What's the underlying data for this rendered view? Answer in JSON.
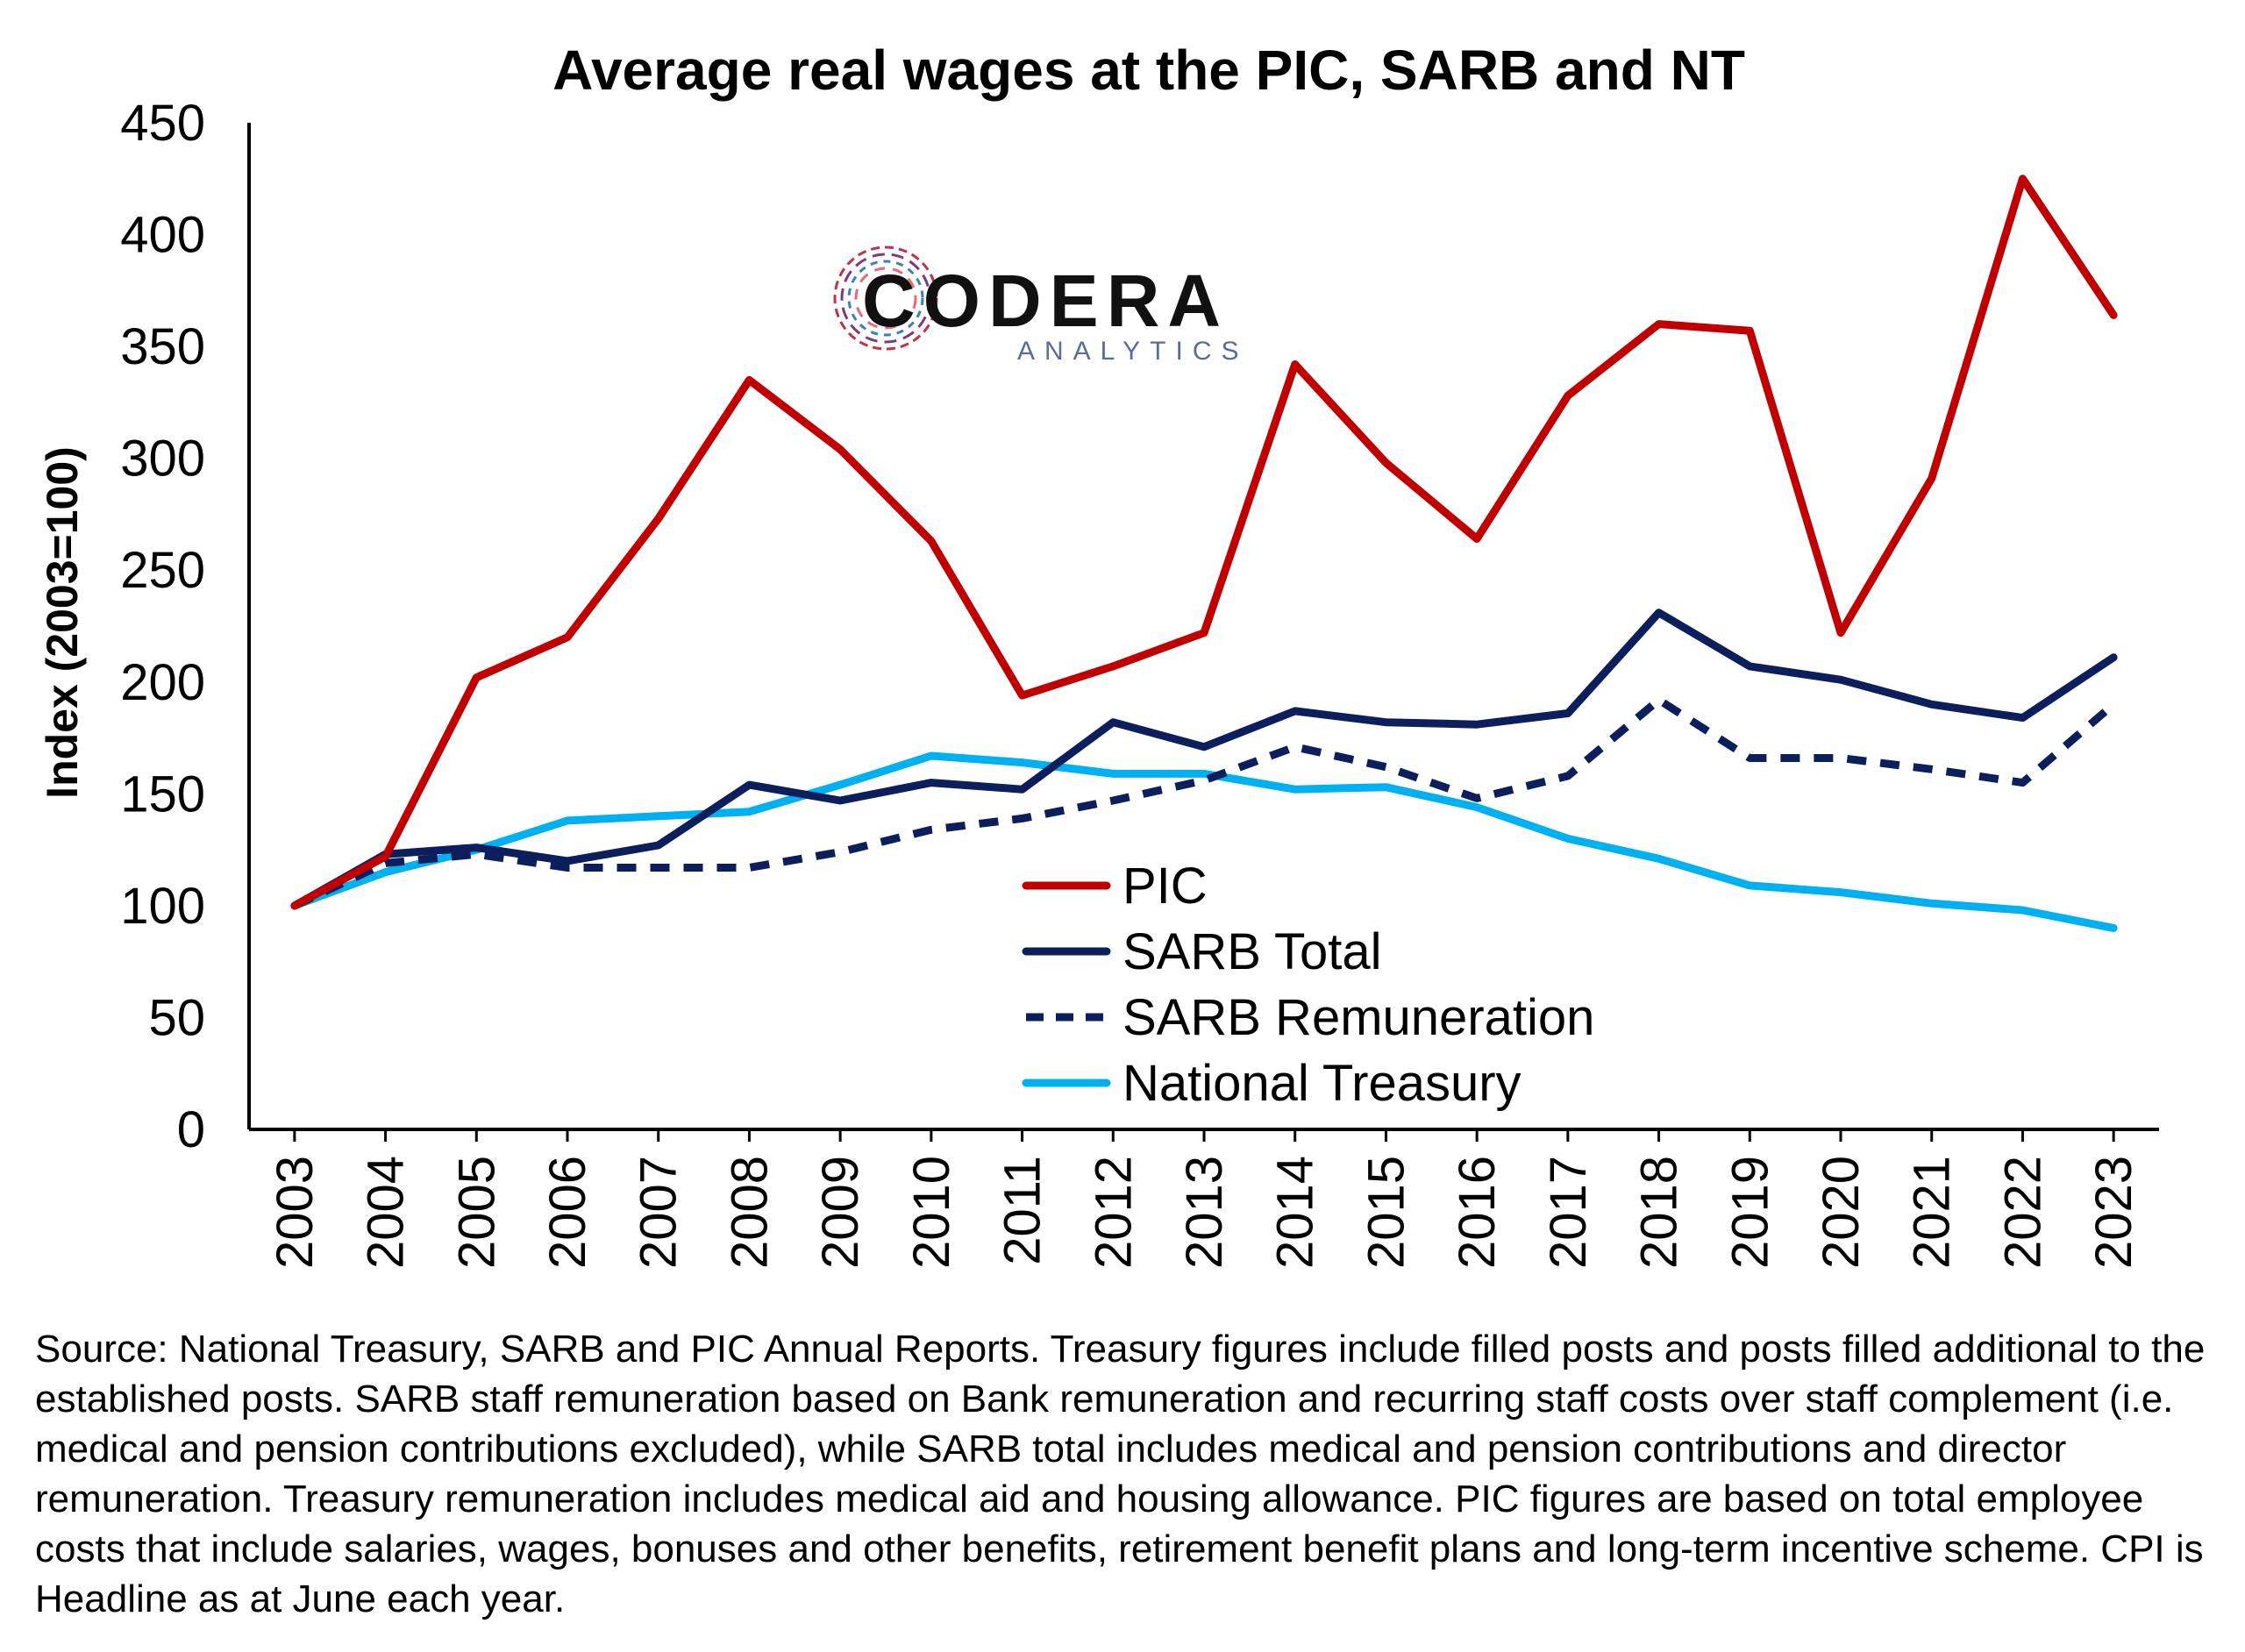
{
  "chart_data": {
    "type": "line",
    "title": "Average real wages at the PIC, SARB and NT",
    "xlabel": "",
    "ylabel": "Index (2003=100)",
    "ylim": [
      0,
      450
    ],
    "yticks": [
      0,
      50,
      100,
      150,
      200,
      250,
      300,
      350,
      400,
      450
    ],
    "grid": false,
    "legend_position": "center-bottom",
    "categories": [
      "2003",
      "2004",
      "2005",
      "2006",
      "2007",
      "2008",
      "2009",
      "2010",
      "2011",
      "2012",
      "2013",
      "2014",
      "2015",
      "2016",
      "2017",
      "2018",
      "2019",
      "2020",
      "2021",
      "2022",
      "2023"
    ],
    "series": [
      {
        "name": "PIC",
        "color": "#C00000",
        "dash": "solid",
        "values": [
          100,
          122,
          202,
          220,
          273,
          335,
          304,
          263,
          194,
          207,
          222,
          342,
          298,
          264,
          328,
          360,
          357,
          222,
          291,
          425,
          364
        ]
      },
      {
        "name": "SARB Total",
        "color": "#0C1E5B",
        "dash": "solid",
        "values": [
          100,
          123,
          126,
          120,
          127,
          154,
          147,
          155,
          152,
          182,
          171,
          187,
          182,
          181,
          186,
          231,
          207,
          201,
          190,
          184,
          211
        ]
      },
      {
        "name": "SARB Remuneration",
        "color": "#0C1E5B",
        "dash": "dashed",
        "values": [
          100,
          119,
          123,
          117,
          117,
          117,
          124,
          134,
          139,
          147,
          156,
          171,
          162,
          148,
          158,
          192,
          166,
          166,
          161,
          155,
          190
        ]
      },
      {
        "name": "National Treasury",
        "color": "#00B0F0",
        "dash": "solid",
        "values": [
          100,
          115,
          125,
          138,
          140,
          142,
          154,
          167,
          164,
          159,
          159,
          152,
          153,
          144,
          130,
          121,
          109,
          106,
          101,
          98,
          90
        ]
      }
    ]
  },
  "logo": {
    "name": "CODERA",
    "tagline": "ANALYTICS",
    "icon": "circuit-ring-icon"
  },
  "source_note": "Source: National Treasury, SARB and PIC Annual Reports. Treasury figures include filled posts and posts filled additional to the established posts. SARB staff remuneration based on Bank remuneration and recurring staff costs over staff complement (i.e. medical and pension contributions excluded), while SARB total includes medical and pension contributions and director remuneration. Treasury remuneration includes medical aid and housing allowance. PIC figures are based on total employee costs that include salaries, wages, bonuses and other benefits, retirement benefit plans and long-term incentive scheme. CPI is Headline as at June each year."
}
